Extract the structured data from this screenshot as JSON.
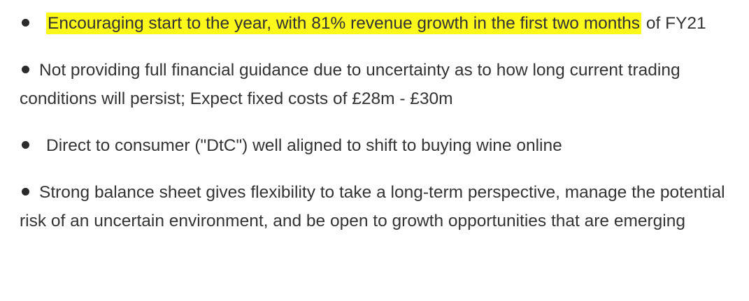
{
  "bullets": [
    {
      "highlighted_text": "Encouraging start to the year, with 81% revenue growth in the first two months",
      "rest_text": " of FY21",
      "highlight_color": "#fcf81a"
    },
    {
      "text": "Not providing full financial guidance due to uncertainty as to how long current trading conditions will persist; Expect fixed costs of £28m - £30m"
    },
    {
      "text": "Direct to consumer (\"DtC\") well aligned to shift to buying wine online"
    },
    {
      "text": "Strong balance sheet gives flexibility to take a long-term perspective, manage the potential risk of an uncertain environment, and be open to growth opportunities that are emerging"
    }
  ]
}
